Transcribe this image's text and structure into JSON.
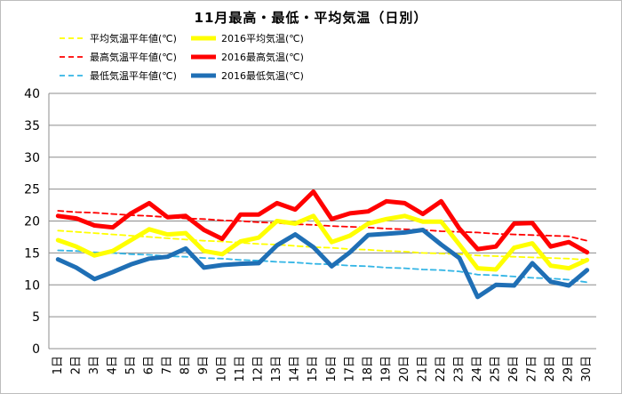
{
  "chart_data": {
    "type": "line",
    "title": "11月最高・最低・平均気温（日別）",
    "xlabel": "",
    "ylabel": "",
    "ylim": [
      0,
      40
    ],
    "yticks": [
      0,
      5,
      10,
      15,
      20,
      25,
      30,
      35,
      40
    ],
    "grid": true,
    "legend_position": "top-left",
    "categories": [
      "1日",
      "2日",
      "3日",
      "4日",
      "5日",
      "6日",
      "7日",
      "8日",
      "9日",
      "10日",
      "11日",
      "12日",
      "13日",
      "14日",
      "15日",
      "16日",
      "17日",
      "18日",
      "19日",
      "20日",
      "21日",
      "22日",
      "23日",
      "24日",
      "25日",
      "26日",
      "27日",
      "28日",
      "29日",
      "30日"
    ],
    "series": [
      {
        "name": "平均気温平年値(℃)",
        "color": "#ffff00",
        "style": "dashed",
        "width": "thin",
        "values": [
          18.5,
          18.3,
          18.1,
          17.9,
          17.7,
          17.5,
          17.3,
          17.1,
          16.9,
          16.8,
          16.6,
          16.4,
          16.3,
          16.1,
          15.9,
          15.8,
          15.6,
          15.5,
          15.3,
          15.2,
          15.0,
          14.9,
          14.8,
          14.6,
          14.5,
          14.4,
          14.3,
          14.2,
          14.1,
          13.9
        ]
      },
      {
        "name": "2016平均気温(℃)",
        "color": "#ffff00",
        "style": "solid",
        "width": "thick",
        "values": [
          17.0,
          16.0,
          14.6,
          15.3,
          17.0,
          18.7,
          17.9,
          18.1,
          15.3,
          14.8,
          16.8,
          17.4,
          20.0,
          19.6,
          20.8,
          16.7,
          17.7,
          19.6,
          20.3,
          20.8,
          19.9,
          19.9,
          16.3,
          12.6,
          12.4,
          15.8,
          16.5,
          13.0,
          12.6,
          13.9
        ]
      },
      {
        "name": "最高気温平年値(℃)",
        "color": "#ff0000",
        "style": "dashed",
        "width": "thin",
        "values": [
          21.6,
          21.4,
          21.3,
          21.1,
          20.9,
          20.8,
          20.6,
          20.4,
          20.3,
          20.1,
          20.0,
          19.8,
          19.7,
          19.5,
          19.4,
          19.2,
          19.1,
          19.0,
          18.8,
          18.7,
          18.6,
          18.4,
          18.3,
          18.2,
          18.0,
          17.9,
          17.8,
          17.7,
          17.6,
          16.9
        ]
      },
      {
        "name": "2016最高気温(℃)",
        "color": "#ff0000",
        "style": "solid",
        "width": "thick",
        "values": [
          20.8,
          20.4,
          19.3,
          19.0,
          21.2,
          22.8,
          20.6,
          20.8,
          18.6,
          17.2,
          21.0,
          21.0,
          22.8,
          21.8,
          24.6,
          20.3,
          21.2,
          21.5,
          23.1,
          22.8,
          21.1,
          23.1,
          18.8,
          15.6,
          16.0,
          19.6,
          19.7,
          16.0,
          16.7,
          15.1
        ]
      },
      {
        "name": "最低気温平年値(℃)",
        "color": "#33b5e5",
        "style": "dashed",
        "width": "thin",
        "values": [
          15.4,
          15.3,
          15.1,
          15.0,
          14.8,
          14.7,
          14.5,
          14.4,
          14.2,
          14.1,
          13.9,
          13.8,
          13.6,
          13.5,
          13.3,
          13.2,
          13.0,
          12.9,
          12.7,
          12.6,
          12.4,
          12.3,
          12.1,
          11.6,
          11.5,
          11.3,
          11.1,
          11.0,
          10.8,
          10.4
        ]
      },
      {
        "name": "2016最低気温(℃)",
        "color": "#1f6fb5",
        "style": "solid",
        "width": "thick",
        "values": [
          14.0,
          12.7,
          10.9,
          12.0,
          13.2,
          14.1,
          14.4,
          15.7,
          12.7,
          13.1,
          13.3,
          13.4,
          16.2,
          17.9,
          15.9,
          12.9,
          15.1,
          17.8,
          18.0,
          18.2,
          18.6,
          16.3,
          14.2,
          8.1,
          10.0,
          9.9,
          13.4,
          10.5,
          9.9,
          12.3
        ]
      }
    ]
  }
}
